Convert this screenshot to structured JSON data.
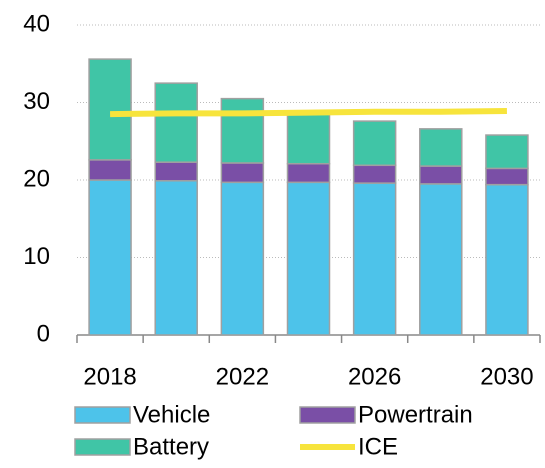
{
  "chart_data": {
    "type": "bar",
    "stacked": true,
    "categories": [
      "2018",
      null,
      "2022",
      null,
      "2026",
      null,
      "2030"
    ],
    "series": [
      {
        "name": "Vehicle",
        "color": "#4dc3ea",
        "values": [
          20.0,
          19.9,
          19.7,
          19.7,
          19.6,
          19.5,
          19.4
        ]
      },
      {
        "name": "Powertrain",
        "color": "#7a4fa6",
        "values": [
          2.6,
          2.4,
          2.5,
          2.4,
          2.3,
          2.3,
          2.1
        ]
      },
      {
        "name": "Battery",
        "color": "#40c5a6",
        "values": [
          13.0,
          10.2,
          8.3,
          6.5,
          5.7,
          4.8,
          4.3
        ]
      },
      {
        "name": "ICE",
        "color": "#f7e43c",
        "type": "line",
        "values": [
          28.5,
          28.6,
          28.6,
          28.7,
          28.8,
          28.8,
          28.9
        ]
      }
    ],
    "ylim": [
      0,
      40
    ],
    "yticks": [
      0,
      10,
      20,
      30,
      40
    ],
    "grid": true,
    "legend": "bottom"
  }
}
